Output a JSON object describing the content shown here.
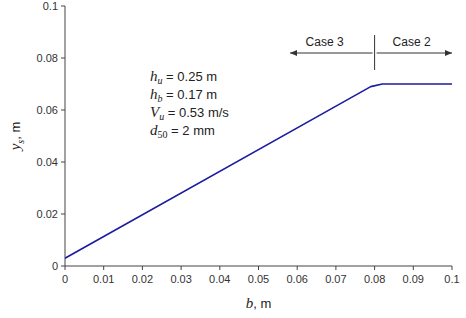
{
  "chart_data": {
    "type": "line",
    "x_label": "b, m",
    "y_label": "ys, m",
    "x": [
      0,
      0.079,
      0.082,
      0.1
    ],
    "series": [
      {
        "color": "#1c1ca0",
        "values": [
          0.003,
          0.069,
          0.07,
          0.07
        ]
      }
    ],
    "xlim": [
      0,
      0.1
    ],
    "xticks": [
      0,
      0.01,
      0.02,
      0.03,
      0.04,
      0.05,
      0.06,
      0.07,
      0.08,
      0.09,
      0.1
    ],
    "ylim": [
      0,
      0.1
    ],
    "yticks": [
      0,
      0.02,
      0.04,
      0.06,
      0.08,
      0.1
    ],
    "grid": false,
    "annotations": [
      "hu = 0.25 m",
      "hb = 0.17 m",
      "Vu = 0.53 m/s",
      "d50 = 2 mm"
    ],
    "case_labels": [
      "Case 3",
      "Case 2"
    ],
    "case_boundary": 0.08
  }
}
